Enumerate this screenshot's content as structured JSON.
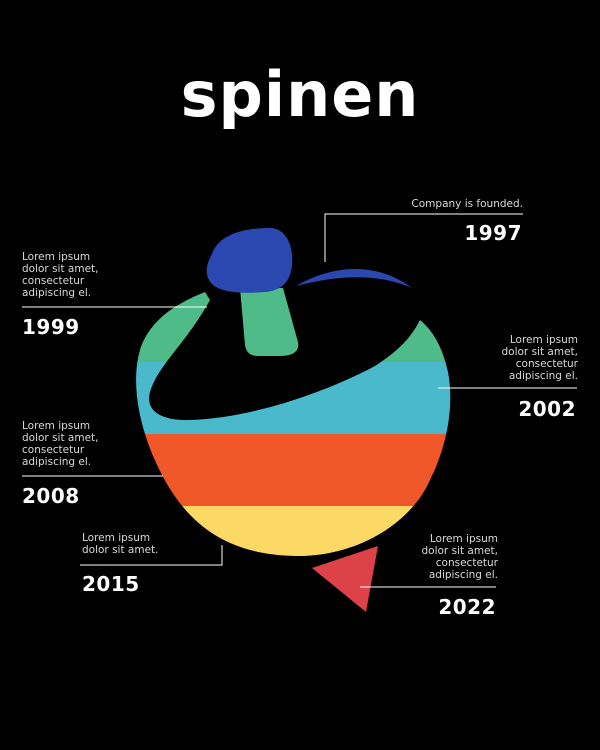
{
  "title": "spinen",
  "colors": {
    "background": "#000000",
    "blue": "#2B47B0",
    "green": "#4FBB88",
    "cyan": "#4AB9CB",
    "orange": "#F0582A",
    "yellow": "#FCD864",
    "red": "#DC4247"
  },
  "milestones": [
    {
      "year": "1997",
      "text": [
        "Company is founded."
      ]
    },
    {
      "year": "1999",
      "text": [
        "Lorem ipsum",
        "dolor sit amet,",
        "consectetur",
        "adipiscing el."
      ]
    },
    {
      "year": "2002",
      "text": [
        "Lorem ipsum",
        "dolor sit amet,",
        "consectetur",
        "adipiscing el."
      ]
    },
    {
      "year": "2008",
      "text": [
        "Lorem ipsum",
        "dolor sit amet,",
        "consectetur",
        "adipiscing el."
      ]
    },
    {
      "year": "2015",
      "text": [
        "Lorem ipsum",
        "dolor sit amet."
      ]
    },
    {
      "year": "2022",
      "text": [
        "Lorem ipsum",
        "dolor sit amet,",
        "consectetur",
        "adipiscing el."
      ]
    }
  ]
}
